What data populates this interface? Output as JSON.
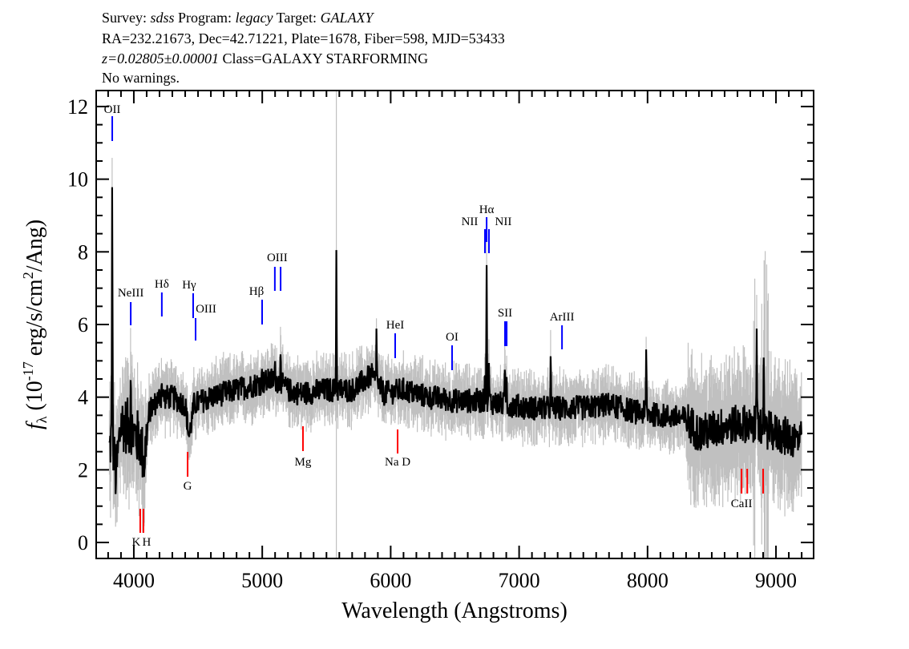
{
  "header": {
    "line1": {
      "survey_label": "Survey:",
      "survey": "sdss",
      "program_label": "Program:",
      "program": "legacy",
      "target_label": "Target:",
      "target": "GALAXY"
    },
    "line2": "RA=232.21673, Dec=42.71221, Plate=1678, Fiber=598, MJD=53433",
    "line3": {
      "redshift": "z=0.02805±0.00001",
      "class": "Class=GALAXY STARFORMING"
    },
    "line4": "No warnings."
  },
  "chart_data": {
    "type": "line",
    "xlabel": "Wavelength (Angstroms)",
    "ylabel": {
      "prefix": "f",
      "subscript": "λ",
      "text": " (10",
      "exp": "-17",
      "text2": " erg/s/cm",
      "exp2": "2",
      "text3": "/Ang)"
    },
    "xlim": [
      3707,
      9293
    ],
    "ylim": [
      -0.44,
      12.44
    ],
    "x_ticks": [
      4000,
      5000,
      6000,
      7000,
      8000,
      9000
    ],
    "y_ticks": [
      0,
      2,
      4,
      6,
      8,
      10,
      12
    ],
    "x_minor_step": 100,
    "y_minor_step": 0.5,
    "grid": false,
    "colors": {
      "flux": "#000000",
      "error": "#c0c0c0",
      "emission": "#0000ff",
      "absorption": "#ff0000"
    },
    "continuum": [
      [
        3810,
        2.5
      ],
      [
        3830,
        3.0
      ],
      [
        3860,
        1.8
      ],
      [
        3900,
        3.3
      ],
      [
        3950,
        3.2
      ],
      [
        4000,
        3.0
      ],
      [
        4050,
        2.8
      ],
      [
        4080,
        2.2
      ],
      [
        4120,
        3.6
      ],
      [
        4200,
        4.0
      ],
      [
        4300,
        4.0
      ],
      [
        4400,
        3.8
      ],
      [
        4430,
        2.9
      ],
      [
        4470,
        3.8
      ],
      [
        4600,
        4.0
      ],
      [
        4800,
        4.2
      ],
      [
        5000,
        4.4
      ],
      [
        5100,
        4.5
      ],
      [
        5200,
        4.2
      ],
      [
        5300,
        4.1
      ],
      [
        5500,
        4.2
      ],
      [
        5700,
        4.2
      ],
      [
        5850,
        4.6
      ],
      [
        5950,
        4.1
      ],
      [
        6100,
        4.2
      ],
      [
        6300,
        4.0
      ],
      [
        6500,
        3.9
      ],
      [
        6700,
        3.9
      ],
      [
        6900,
        3.8
      ],
      [
        7100,
        3.7
      ],
      [
        7300,
        3.7
      ],
      [
        7500,
        3.7
      ],
      [
        7700,
        3.8
      ],
      [
        7900,
        3.6
      ],
      [
        8100,
        3.5
      ],
      [
        8300,
        3.4
      ],
      [
        8400,
        3.0
      ],
      [
        8600,
        3.2
      ],
      [
        8800,
        3.3
      ],
      [
        9000,
        3.0
      ],
      [
        9200,
        2.8
      ]
    ],
    "emission_peaks": [
      [
        3832,
        10.4
      ],
      [
        3976,
        5.1
      ],
      [
        4218,
        4.6
      ],
      [
        5000,
        4.8
      ],
      [
        5098,
        4.8
      ],
      [
        5143,
        5.6
      ],
      [
        5577,
        8.05
      ],
      [
        5890,
        5.9
      ],
      [
        6734,
        4.8
      ],
      [
        6747,
        7.9
      ],
      [
        6765,
        5.0
      ],
      [
        6890,
        5.0
      ],
      [
        6903,
        4.6
      ],
      [
        7246,
        5.0
      ],
      [
        7990,
        5.3
      ],
      [
        8850,
        6.2
      ],
      [
        8905,
        5.8
      ]
    ],
    "line_markers": [
      {
        "label": "OII",
        "wavelengths": [
          3832
        ],
        "kind": "emission"
      },
      {
        "label": "NeIII",
        "wavelengths": [
          3976
        ],
        "kind": "emission"
      },
      {
        "label": "Hδ",
        "wavelengths": [
          4218
        ],
        "kind": "emission"
      },
      {
        "label": "Hγ",
        "wavelengths": [
          4462
        ],
        "kind": "emission"
      },
      {
        "label": "OIII",
        "wavelengths": [
          4481
        ],
        "kind": "emission"
      },
      {
        "label": "Hβ",
        "wavelengths": [
          4999
        ],
        "kind": "emission"
      },
      {
        "label": "OIII",
        "wavelengths": [
          5098,
          5143
        ],
        "kind": "emission"
      },
      {
        "label": "HeI",
        "wavelengths": [
          6035
        ],
        "kind": "emission"
      },
      {
        "label": "OI",
        "wavelengths": [
          6478
        ],
        "kind": "emission"
      },
      {
        "label": "NII",
        "wavelengths": [
          6734
        ],
        "kind": "emission"
      },
      {
        "label": "Hα",
        "wavelengths": [
          6747
        ],
        "kind": "emission"
      },
      {
        "label": "NII",
        "wavelengths": [
          6765
        ],
        "kind": "emission"
      },
      {
        "label": "SII",
        "wavelengths": [
          6890,
          6903
        ],
        "kind": "emission"
      },
      {
        "label": "ArIII",
        "wavelengths": [
          7334
        ],
        "kind": "emission"
      },
      {
        "label": "K",
        "wavelengths": [
          4050
        ],
        "kind": "absorption"
      },
      {
        "label": "H",
        "wavelengths": [
          4075
        ],
        "kind": "absorption"
      },
      {
        "label": "G",
        "wavelengths": [
          4419
        ],
        "kind": "absorption"
      },
      {
        "label": "Mg",
        "wavelengths": [
          5317
        ],
        "kind": "absorption"
      },
      {
        "label": "Na  D",
        "wavelengths": [
          6054
        ],
        "kind": "absorption"
      },
      {
        "label": "CaII",
        "wavelengths": [
          8732,
          8776,
          8900
        ],
        "kind": "absorption"
      }
    ]
  }
}
